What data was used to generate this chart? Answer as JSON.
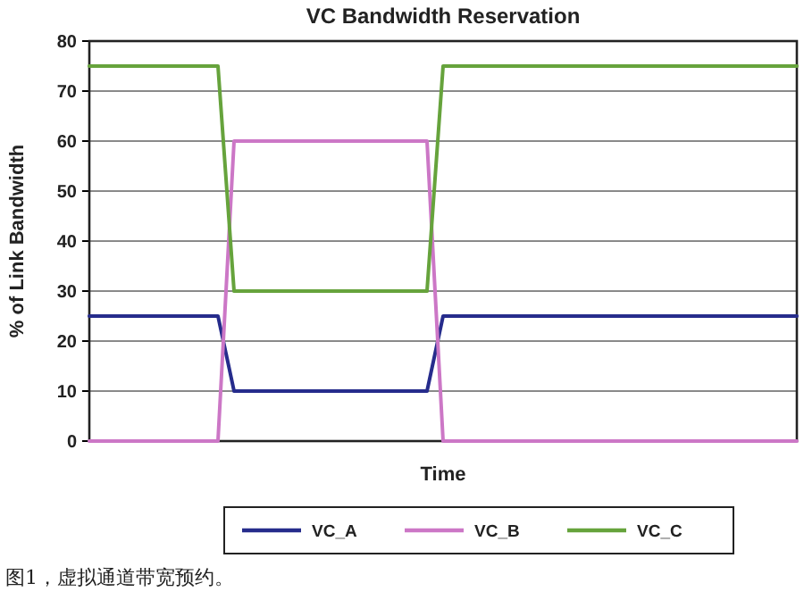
{
  "chart_data": {
    "type": "line",
    "title": "VC Bandwidth Reservation",
    "xlabel": "Time",
    "ylabel": "% of Link Bandwidth",
    "categories": [
      null,
      null,
      null,
      null,
      null,
      null,
      null,
      null,
      null,
      null,
      null,
      null,
      null,
      null,
      null,
      null,
      null,
      null,
      null,
      null,
      null,
      null,
      null,
      null,
      null,
      null,
      null,
      null,
      null,
      null,
      null,
      null,
      null,
      null,
      null,
      null,
      null,
      null,
      null,
      null,
      null,
      null,
      null,
      null,
      null
    ],
    "series": [
      {
        "name": "VC_A",
        "color": "#262c8c",
        "values": [
          25,
          25,
          25,
          25,
          25,
          25,
          25,
          25,
          25,
          10,
          10,
          10,
          10,
          10,
          10,
          10,
          10,
          10,
          10,
          10,
          10,
          10,
          25,
          25,
          25,
          25,
          25,
          25,
          25,
          25,
          25,
          25,
          25,
          25,
          25,
          25,
          25,
          25,
          25,
          25,
          25,
          25,
          25,
          25,
          25
        ]
      },
      {
        "name": "VC_B",
        "color": "#cc77c6",
        "values": [
          0,
          0,
          0,
          0,
          0,
          0,
          0,
          0,
          0,
          60,
          60,
          60,
          60,
          60,
          60,
          60,
          60,
          60,
          60,
          60,
          60,
          60,
          0,
          0,
          0,
          0,
          0,
          0,
          0,
          0,
          0,
          0,
          0,
          0,
          0,
          0,
          0,
          0,
          0,
          0,
          0,
          0,
          0,
          0,
          0
        ]
      },
      {
        "name": "VC_C",
        "color": "#66a33c",
        "values": [
          75,
          75,
          75,
          75,
          75,
          75,
          75,
          75,
          75,
          30,
          30,
          30,
          30,
          30,
          30,
          30,
          30,
          30,
          30,
          30,
          30,
          30,
          75,
          75,
          75,
          75,
          75,
          75,
          75,
          75,
          75,
          75,
          75,
          75,
          75,
          75,
          75,
          75,
          75,
          75,
          75,
          75,
          75,
          75,
          75
        ]
      }
    ],
    "ylim": [
      0,
      80
    ],
    "yticks": [
      0,
      10,
      20,
      30,
      40,
      50,
      60,
      70,
      80
    ],
    "grid": "y",
    "legend": "bottom",
    "line_style": "solid",
    "marker": "none",
    "annotations": [
      "图1，虚拟通道带宽预约。"
    ]
  }
}
